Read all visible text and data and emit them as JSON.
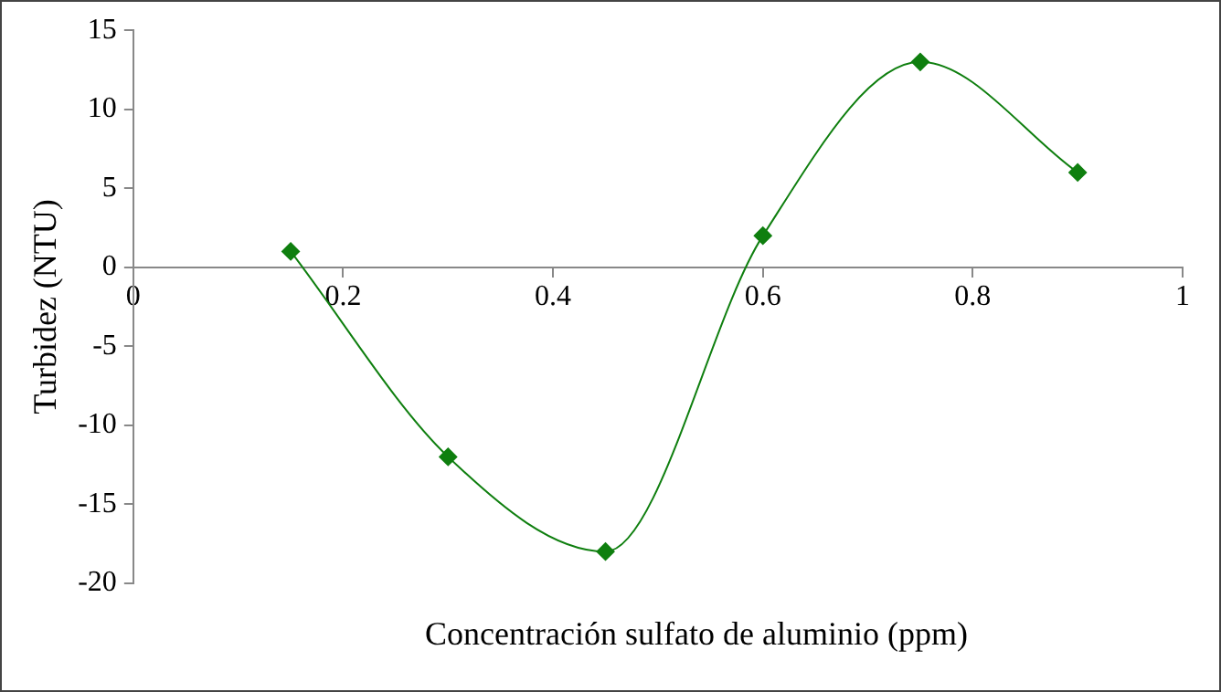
{
  "chart_data": {
    "type": "line",
    "xlabel": "Concentración sulfato de aluminio (ppm)",
    "ylabel": "Turbidez (NTU)",
    "x": [
      0.15,
      0.3,
      0.45,
      0.6,
      0.75,
      0.9
    ],
    "series": [
      {
        "color": "#0f7f0f",
        "values": [
          1,
          -12,
          -18,
          2,
          13,
          6
        ]
      }
    ],
    "xlim": [
      0,
      1
    ],
    "xticks": [
      0,
      0.2,
      0.4,
      0.6,
      0.8,
      1
    ],
    "ylim": [
      -20,
      15
    ],
    "yticks": [
      -20,
      -15,
      -10,
      -5,
      0,
      5,
      10,
      15
    ],
    "grid": false,
    "legend": false,
    "marker": "diamond",
    "line_style": "solid"
  }
}
